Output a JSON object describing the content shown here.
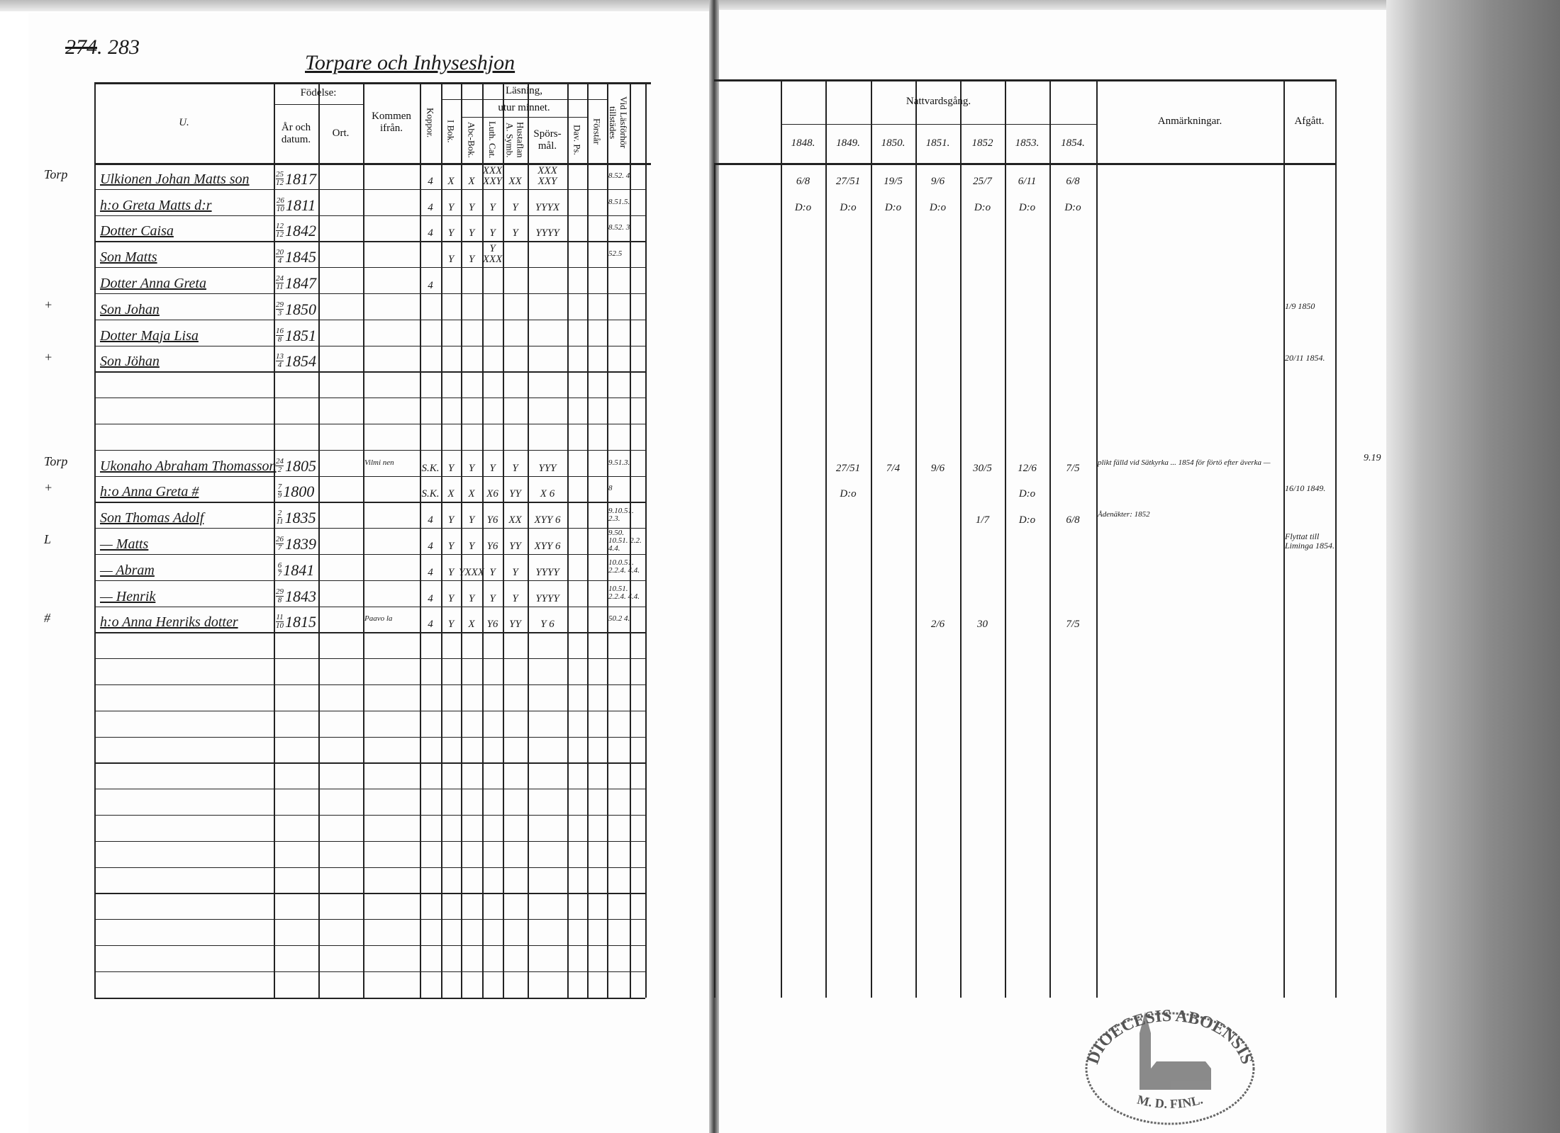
{
  "left_page": {
    "page_number_struck": "274",
    "page_number": "283",
    "section_title": "Torpare och Inhyseshjon",
    "headers": {
      "name": "U.",
      "fodelse": "Födelse:",
      "ar_och_datum": "År och datum.",
      "ort": "Ort.",
      "kommen_ifran": "Kommen ifrån.",
      "koppor": "Koppor.",
      "lasning": "Läsning,",
      "utur_minnet": "utur minnet.",
      "i_bok": "I Bok.",
      "abc_bok": "Abc-Bok.",
      "luth_cat": "Luth. Cat.",
      "hustaflan": "Hustaflan A. Symb.",
      "sporsmal": "Spörs-mål.",
      "dav_ps": "Dav. Ps.",
      "forstar": "Förstår",
      "vid_lasforhor": "Vid Läsförhör tillstädes"
    },
    "families": [
      {
        "rows": [
          {
            "margin": "Torp",
            "name": "Ulkionen Johan Matts son",
            "birth_day": "25",
            "birth_month": "12",
            "birth_year": "1817",
            "ort": "",
            "kommen": "",
            "koppor": "4",
            "i_bok": "X",
            "abc": "X",
            "luth": "XXX XXY",
            "hustaflan": "XX",
            "sporsmal": "XXX XXY",
            "dav": "",
            "forstar": "",
            "lasforhor": "8.52. 4."
          },
          {
            "margin": "",
            "name": "h:o Greta Matts d:r",
            "birth_day": "26",
            "birth_month": "10",
            "birth_year": "1811",
            "ort": "",
            "kommen": "",
            "koppor": "4",
            "i_bok": "Y",
            "abc": "Y",
            "luth": "Y",
            "hustaflan": "Y",
            "sporsmal": "YYYX",
            "dav": "",
            "forstar": "",
            "lasforhor": "8.51.5."
          },
          {
            "margin": "",
            "name": "Dotter Caisa",
            "birth_day": "12",
            "birth_month": "12",
            "birth_year": "1842",
            "ort": "",
            "kommen": "",
            "koppor": "4",
            "i_bok": "Y",
            "abc": "Y",
            "luth": "Y",
            "hustaflan": "Y",
            "sporsmal": "YYYY",
            "dav": "",
            "forstar": "",
            "lasforhor": "8.52. 3."
          },
          {
            "margin": "",
            "name": "Son Matts",
            "birth_day": "20",
            "birth_month": "4",
            "birth_year": "1845",
            "ort": "",
            "kommen": "",
            "koppor": "",
            "i_bok": "Y",
            "abc": "Y",
            "luth": "Y XXX",
            "hustaflan": "",
            "sporsmal": "",
            "dav": "",
            "forstar": "",
            "lasforhor": "52.5"
          },
          {
            "margin": "",
            "name": "Dotter Anna Greta",
            "birth_day": "24",
            "birth_month": "11",
            "birth_year": "1847",
            "ort": "",
            "kommen": "",
            "koppor": "4",
            "i_bok": "",
            "abc": "",
            "luth": "",
            "hustaflan": "",
            "sporsmal": "",
            "dav": "",
            "forstar": "",
            "lasforhor": ""
          },
          {
            "margin": "+",
            "name": "Son Johan",
            "birth_day": "29",
            "birth_month": "3",
            "birth_year": "1850",
            "ort": "",
            "kommen": "",
            "koppor": "",
            "i_bok": "",
            "abc": "",
            "luth": "",
            "hustaflan": "",
            "sporsmal": "",
            "dav": "",
            "forstar": "",
            "lasforhor": ""
          },
          {
            "margin": "",
            "name": "Dotter Maja Lisa",
            "birth_day": "16",
            "birth_month": "8",
            "birth_year": "1851",
            "ort": "",
            "kommen": "",
            "koppor": "",
            "i_bok": "",
            "abc": "",
            "luth": "",
            "hustaflan": "",
            "sporsmal": "",
            "dav": "",
            "forstar": "",
            "lasforhor": ""
          },
          {
            "margin": "+",
            "name": "Son Jöhan",
            "birth_day": "13",
            "birth_month": "4",
            "birth_year": "1854",
            "ort": "",
            "kommen": "",
            "koppor": "",
            "i_bok": "",
            "abc": "",
            "luth": "",
            "hustaflan": "",
            "sporsmal": "",
            "dav": "",
            "forstar": "",
            "lasforhor": ""
          }
        ]
      },
      {
        "rows": [
          {
            "margin": "Torp",
            "name": "Ukonaho Abraham Thomasson",
            "birth_day": "24",
            "birth_month": "2",
            "birth_year": "1805",
            "ort": "",
            "kommen": "Vilmi nen",
            "koppor": "S.K.",
            "i_bok": "Y",
            "abc": "Y",
            "luth": "Y",
            "hustaflan": "Y",
            "sporsmal": "YYY",
            "dav": "",
            "forstar": "",
            "lasforhor": "9.51.3."
          },
          {
            "margin": "+",
            "name": "h:o Anna Greta #",
            "birth_day": "7",
            "birth_month": "9",
            "birth_year": "1800",
            "ort": "",
            "kommen": "",
            "koppor": "S.K.",
            "i_bok": "X",
            "abc": "X",
            "luth": "X6",
            "hustaflan": "YY",
            "sporsmal": "X 6",
            "dav": "",
            "forstar": "",
            "lasforhor": "8"
          },
          {
            "margin": "",
            "name": "Son Thomas Adolf",
            "birth_day": "2",
            "birth_month": "11",
            "birth_year": "1835",
            "ort": "",
            "kommen": "",
            "koppor": "4",
            "i_bok": "Y",
            "abc": "Y",
            "luth": "Y6",
            "hustaflan": "XX",
            "sporsmal": "XYY 6",
            "dav": "",
            "forstar": "",
            "lasforhor": "9.10.51. 2.3."
          },
          {
            "margin": "L",
            "name": "— Matts",
            "birth_day": "26",
            "birth_month": "7",
            "birth_year": "1839",
            "ort": "",
            "kommen": "",
            "koppor": "4",
            "i_bok": "Y",
            "abc": "Y",
            "luth": "Y6",
            "hustaflan": "YY",
            "sporsmal": "XYY 6",
            "dav": "",
            "forstar": "",
            "lasforhor": "9.50. 10.51. 2.2. 4.4."
          },
          {
            "margin": "",
            "name": "— Abram",
            "birth_day": "6",
            "birth_month": "7",
            "birth_year": "1841",
            "ort": "",
            "kommen": "",
            "koppor": "4",
            "i_bok": "Y",
            "abc": "YXXX",
            "luth": "Y",
            "hustaflan": "Y",
            "sporsmal": "YYYY",
            "dav": "",
            "forstar": "",
            "lasforhor": "10.0.51. 2.2.4. 4.4."
          },
          {
            "margin": "",
            "name": "— Henrik",
            "birth_day": "29",
            "birth_month": "8",
            "birth_year": "1843",
            "ort": "",
            "kommen": "",
            "koppor": "4",
            "i_bok": "Y",
            "abc": "Y",
            "luth": "Y",
            "hustaflan": "Y",
            "sporsmal": "YYYY",
            "dav": "",
            "forstar": "",
            "lasforhor": "10.51. 2.2.4. 4.4."
          },
          {
            "margin": "#",
            "name": "h:o Anna Henriks dotter",
            "birth_day": "11",
            "birth_month": "10",
            "birth_year": "1815",
            "ort": "",
            "kommen": "Paavo la",
            "koppor": "4",
            "i_bok": "Y",
            "abc": "X",
            "luth": "Y6",
            "hustaflan": "YY",
            "sporsmal": "Y 6",
            "dav": "",
            "forstar": "",
            "lasforhor": "50.2 4."
          }
        ]
      }
    ]
  },
  "right_page": {
    "headers": {
      "nattvardsgang": "Nattvardsgång.",
      "years": [
        "1848.",
        "1849.",
        "1850.",
        "1851.",
        "1852",
        "1853.",
        "1854."
      ],
      "anmarkningar": "Anmärkningar.",
      "afgatt": "Afgått."
    },
    "families": [
      {
        "rows": [
          {
            "communion": [
              "6/8",
              "27/51",
              "19/5",
              "9/6",
              "25/7",
              "6/11",
              "6/8"
            ],
            "anm": "",
            "afgatt": "",
            "outside": ""
          },
          {
            "communion": [
              "D:o",
              "D:o",
              "D:o",
              "D:o",
              "D:o",
              "D:o",
              "D:o"
            ],
            "anm": "",
            "afgatt": "",
            "outside": ""
          },
          {
            "communion": [
              "",
              "",
              "",
              "",
              "",
              "",
              ""
            ],
            "anm": "",
            "afgatt": "",
            "outside": ""
          },
          {
            "communion": [
              "",
              "",
              "",
              "",
              "",
              "",
              ""
            ],
            "anm": "",
            "afgatt": "",
            "outside": ""
          },
          {
            "communion": [
              "",
              "",
              "",
              "",
              "",
              "",
              ""
            ],
            "anm": "",
            "afgatt": "",
            "outside": ""
          },
          {
            "communion": [
              "",
              "",
              "",
              "",
              "",
              "",
              ""
            ],
            "anm": "",
            "afgatt": "1/9 1850",
            "outside": ""
          },
          {
            "communion": [
              "",
              "",
              "",
              "",
              "",
              "",
              ""
            ],
            "anm": "",
            "afgatt": "",
            "outside": ""
          },
          {
            "communion": [
              "",
              "",
              "",
              "",
              "",
              "",
              ""
            ],
            "anm": "",
            "afgatt": "20/11 1854.",
            "outside": ""
          }
        ]
      },
      {
        "rows": [
          {
            "communion": [
              "",
              "27/51",
              "7/4",
              "9/6",
              "30/5",
              "12/6",
              "7/5"
            ],
            "anm": "plikt fälld vid Sätkyrka ... 1854 för förtö efter äverka —",
            "afgatt": "",
            "outside": "9.19"
          },
          {
            "communion": [
              "",
              "D:o",
              "",
              "",
              "",
              "D:o",
              ""
            ],
            "anm": "",
            "afgatt": "16/10 1849.",
            "outside": ""
          },
          {
            "communion": [
              "",
              "",
              "",
              "",
              "1/7",
              "D:o",
              "6/8"
            ],
            "anm": "Ådenäkter: 1852",
            "afgatt": "",
            "outside": ""
          },
          {
            "communion": [
              "",
              "",
              "",
              "",
              "",
              "",
              ""
            ],
            "anm": "",
            "afgatt": "Flyttat till Liminga 1854.",
            "outside": ""
          },
          {
            "communion": [
              "",
              "",
              "",
              "",
              "",
              "",
              ""
            ],
            "anm": "",
            "afgatt": "",
            "outside": ""
          },
          {
            "communion": [
              "",
              "",
              "",
              "",
              "",
              "",
              ""
            ],
            "anm": "",
            "afgatt": "",
            "outside": ""
          },
          {
            "communion": [
              "",
              "",
              "",
              "2/6",
              "30",
              "",
              "7/5"
            ],
            "anm": "",
            "afgatt": "",
            "outside": ""
          }
        ]
      }
    ]
  },
  "stamp": {
    "top_text": "DIOECESIS ABOENSIS",
    "bottom_text": "M. D. FINL."
  }
}
